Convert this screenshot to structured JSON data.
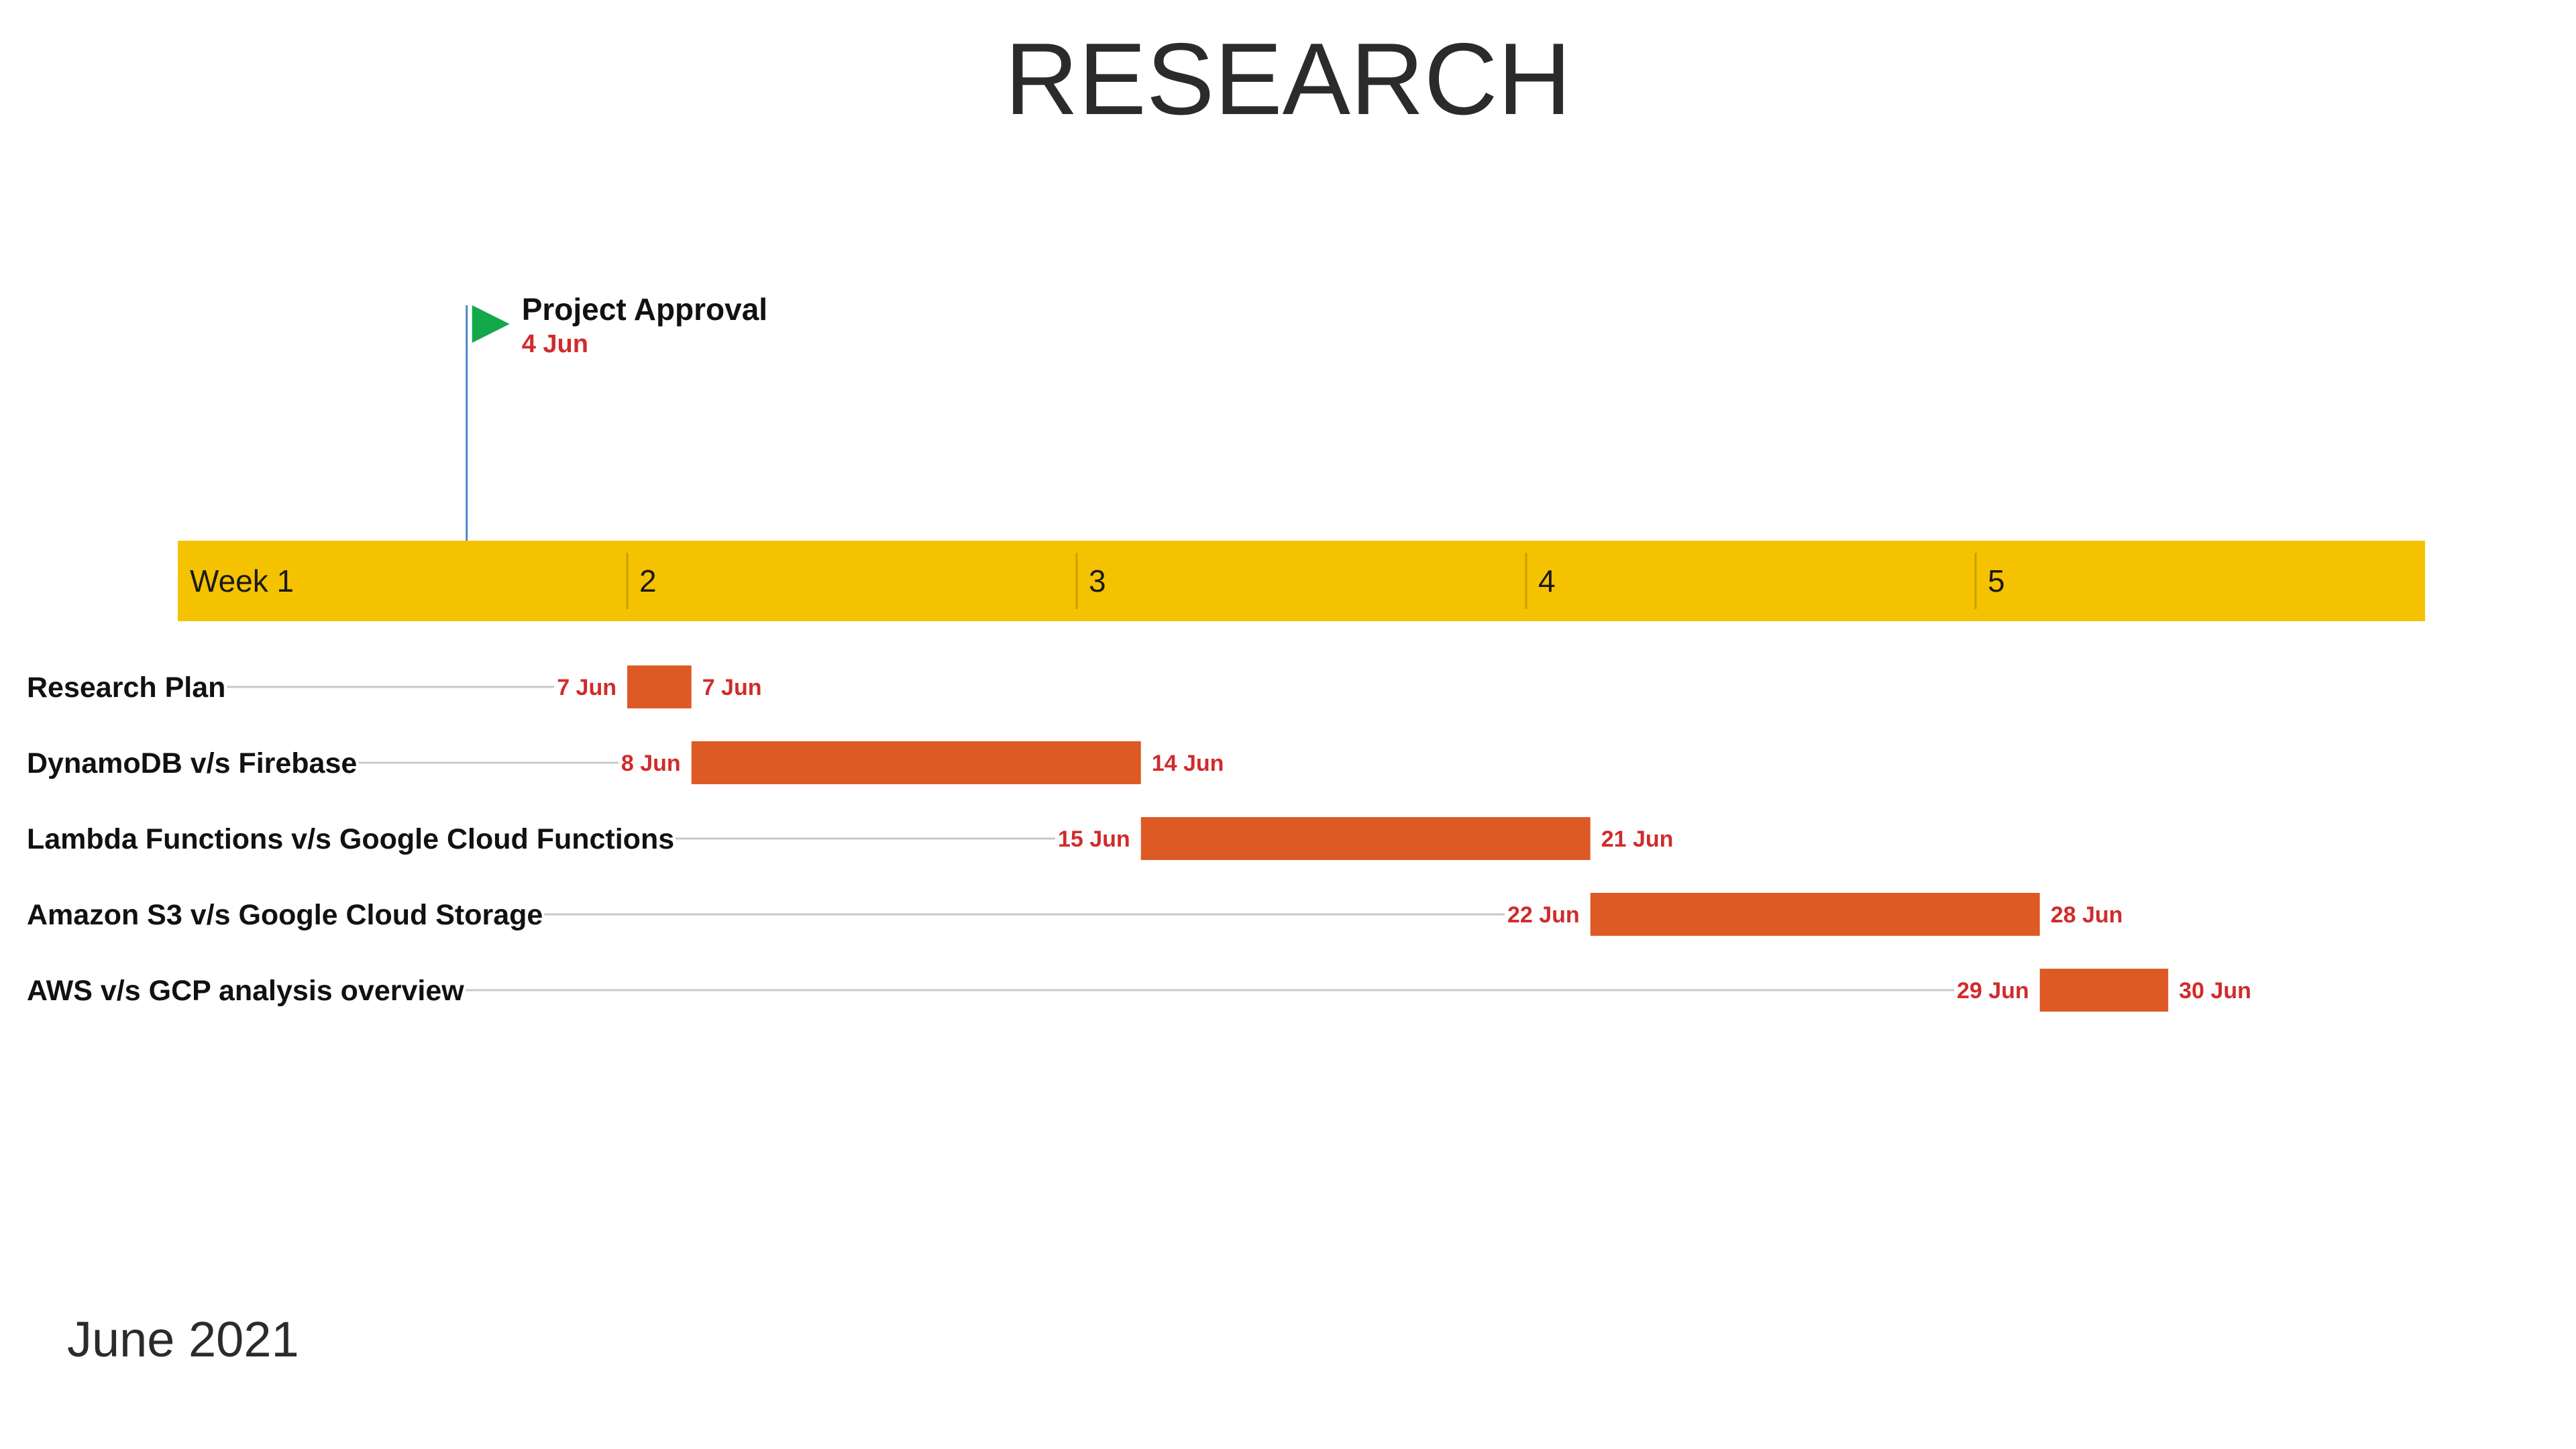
{
  "title": "RESEARCH",
  "footer": "June 2021",
  "colors": {
    "timeline_band": "#f4c200",
    "week_divider": "#c9a000",
    "task_bar": "#dd5a25",
    "connector": "#c8c8c8",
    "date_text": "#d12b2b",
    "milestone_flag": "#13a84a",
    "milestone_line": "#4a86c8"
  },
  "chart_data": {
    "type": "gantt",
    "title": "RESEARCH",
    "period": "June 2021",
    "x_range": [
      "2021-05-31",
      "2021-07-05"
    ],
    "weeks": [
      {
        "label": "Week 1",
        "start": "2021-05-31"
      },
      {
        "label": "2",
        "start": "2021-06-07"
      },
      {
        "label": "3",
        "start": "2021-06-14"
      },
      {
        "label": "4",
        "start": "2021-06-21"
      },
      {
        "label": "5",
        "start": "2021-06-28"
      }
    ],
    "milestones": [
      {
        "name": "Project Approval",
        "date": "2021-06-04",
        "date_label": "4 Jun",
        "icon": "flag-icon"
      }
    ],
    "tasks": [
      {
        "name": "Research Plan",
        "start": "2021-06-07",
        "end": "2021-06-07",
        "start_label": "7 Jun",
        "end_label": "7 Jun"
      },
      {
        "name": "DynamoDB v/s Firebase",
        "start": "2021-06-08",
        "end": "2021-06-14",
        "start_label": "8 Jun",
        "end_label": "14 Jun"
      },
      {
        "name": "Lambda Functions v/s Google Cloud Functions",
        "start": "2021-06-15",
        "end": "2021-06-21",
        "start_label": "15 Jun",
        "end_label": "21 Jun"
      },
      {
        "name": "Amazon S3 v/s Google Cloud Storage",
        "start": "2021-06-22",
        "end": "2021-06-28",
        "start_label": "22 Jun",
        "end_label": "28 Jun"
      },
      {
        "name": "AWS v/s GCP analysis overview",
        "start": "2021-06-29",
        "end": "2021-06-30",
        "start_label": "29 Jun",
        "end_label": "30 Jun"
      }
    ]
  }
}
